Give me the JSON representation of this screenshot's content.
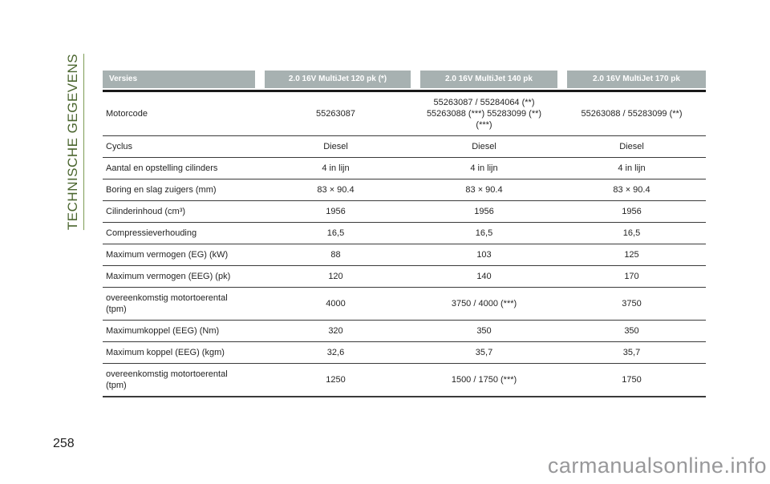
{
  "sidebar": {
    "vertical_label": "TECHNISCHE GEGEVENS"
  },
  "page": {
    "number": "258"
  },
  "watermark": "carmanualsonline.info",
  "table": {
    "headers": [
      "Versies",
      "2.0 16V MultiJet 120 pk (*)",
      "2.0 16V MultiJet 140 pk",
      "2.0 16V MultiJet 170 pk"
    ],
    "rows": [
      {
        "label": "Motorcode",
        "values": [
          "55263087",
          "55263087 / 55284064 (**)\n55263088 (***) 55283099 (**)\n(***)",
          "55263088 / 55283099 (**)"
        ]
      },
      {
        "label": "Cyclus",
        "values": [
          "Diesel",
          "Diesel",
          "Diesel"
        ]
      },
      {
        "label": "Aantal en opstelling cilinders",
        "values": [
          "4 in lijn",
          "4 in lijn",
          "4 in lijn"
        ]
      },
      {
        "label": "Boring en slag zuigers (mm)",
        "values": [
          "83 × 90.4",
          "83 × 90.4",
          "83 × 90.4"
        ]
      },
      {
        "label": "Cilinderinhoud (cm³)",
        "values": [
          "1956",
          "1956",
          "1956"
        ]
      },
      {
        "label": "Compressieverhouding",
        "values": [
          "16,5",
          "16,5",
          "16,5"
        ]
      },
      {
        "label": "Maximum vermogen (EG) (kW)",
        "values": [
          "88",
          "103",
          "125"
        ]
      },
      {
        "label": "Maximum vermogen (EEG) (pk)",
        "values": [
          "120",
          "140",
          "170"
        ]
      },
      {
        "label": "overeenkomstig motortoerental\n(tpm)",
        "values": [
          "4000",
          "3750 / 4000 (***)",
          "3750"
        ]
      },
      {
        "label": "Maximumkoppel (EEG) (Nm)",
        "values": [
          "320",
          "350",
          "350"
        ]
      },
      {
        "label": "Maximum koppel (EEG) (kgm)",
        "values": [
          "32,6",
          "35,7",
          "35,7"
        ]
      },
      {
        "label": "overeenkomstig motortoerental\n(tpm)",
        "values": [
          "1250",
          "1500 / 1750 (***)",
          "1750"
        ]
      }
    ]
  },
  "colors": {
    "header_bg": "#a7b1b1",
    "header_text": "#ffffff",
    "accent_green": "#4a652e",
    "accent_green_line": "#7d9b55",
    "watermark_gray": "#98989a",
    "line_color": "#3a3a3a"
  }
}
